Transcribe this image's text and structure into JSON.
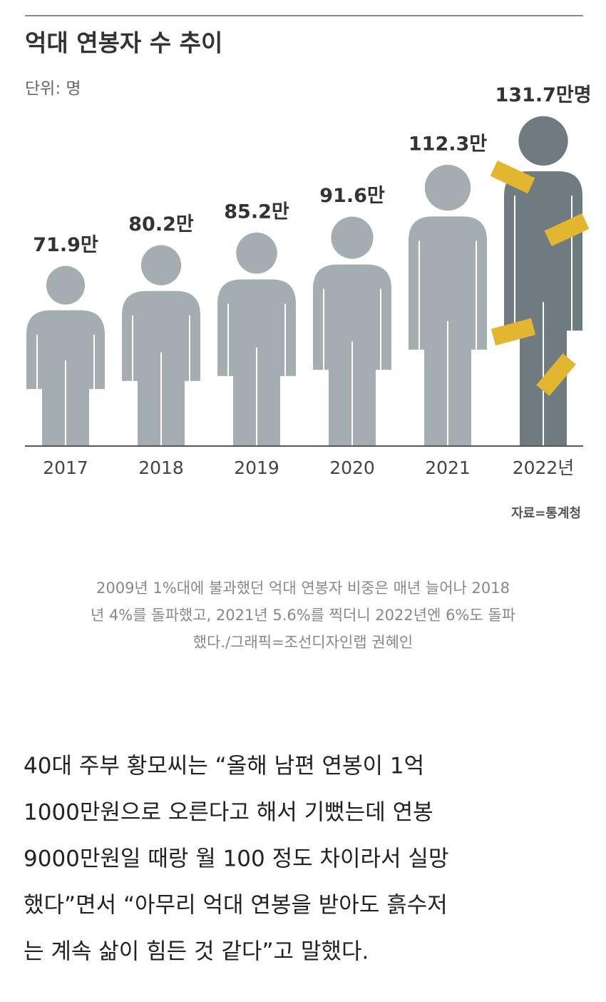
{
  "chart_data": {
    "type": "pictograph",
    "title": "억대 연봉자 수 추이",
    "subtitle": "단위: 명",
    "categories": [
      "2017",
      "2018",
      "2019",
      "2020",
      "2021",
      "2022년"
    ],
    "values": [
      71.9,
      80.2,
      85.2,
      91.6,
      112.3,
      131.7
    ],
    "value_labels": [
      "71.9만",
      "80.2만",
      "85.2만",
      "91.6만",
      "112.3만",
      "131.7만명"
    ],
    "colors": [
      "#a3adb2",
      "#a3adb2",
      "#a3adb2",
      "#a3adb2",
      "#a3adb2",
      "#6f7b80"
    ],
    "source": "자료=통계청"
  },
  "caption": [
    "2009년 1%대에 불과했던 억대 연봉자 비중은 매년 늘어나 2018",
    "년 4%를 돌파했고, 2021년 5.6%를 찍더니 2022년엔 6%도 돌파",
    "했다./그래픽=조선디자인랩 권혜인"
  ],
  "body": [
    "40대 주부 황모씨는 “올해 남편 연봉이 1억",
    "1000만원으로 오른다고 해서 기뻤는데 연봉",
    "9000만원일 때랑 월 100 정도 차이라서 실망",
    "했다”면서 “아무리 억대 연봉을 받아도 흙수저",
    "는 계속 삶이 힘든 것 같다”고 말했다."
  ]
}
